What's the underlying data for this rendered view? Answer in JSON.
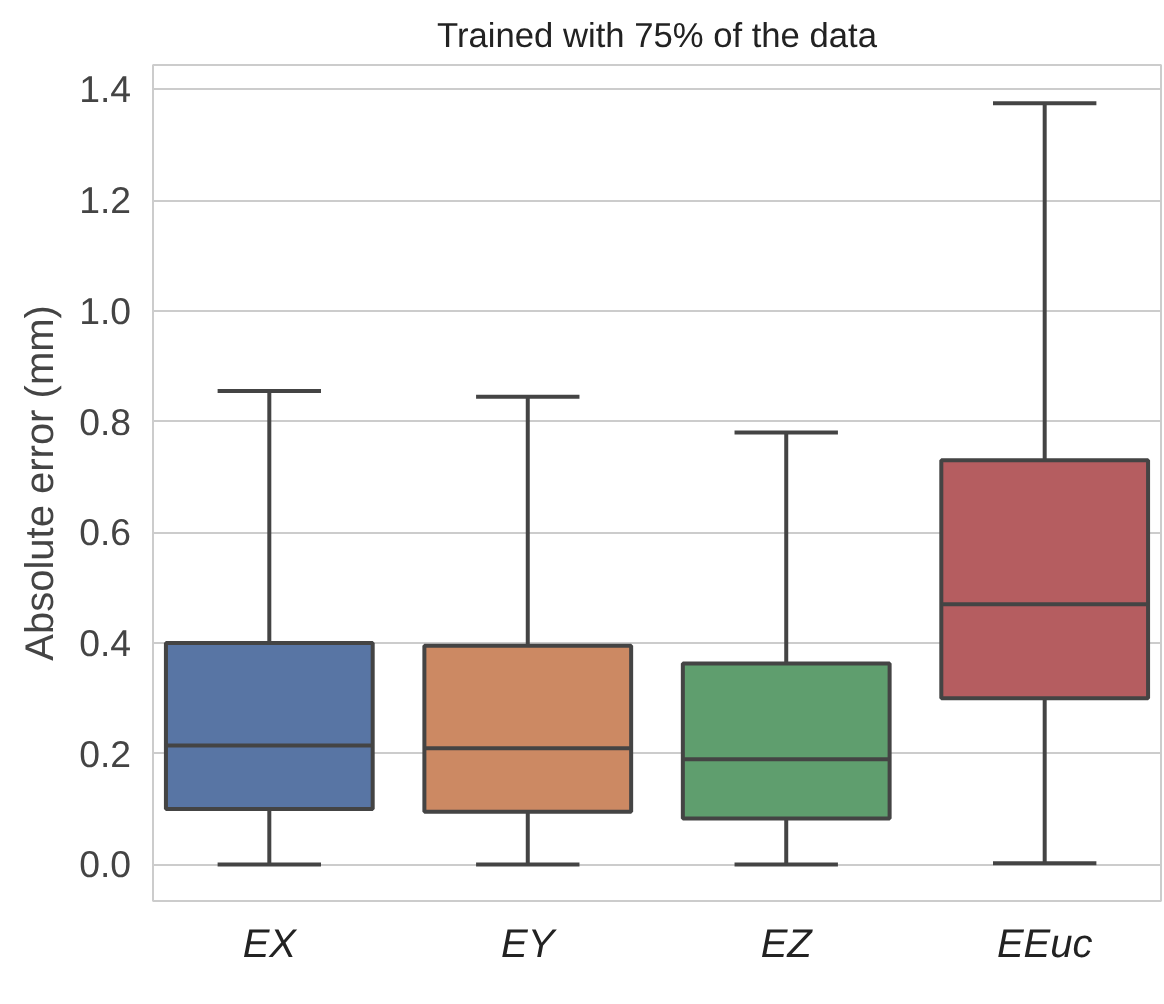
{
  "chart_data": {
    "type": "box",
    "title": "Trained with 75% of the data",
    "ylabel": "Absolute error (mm)",
    "categories": [
      "EX",
      "EY",
      "EZ",
      "EEuc"
    ],
    "colors": [
      "#5875a4",
      "#cc8963",
      "#5f9e6e",
      "#b55d60"
    ],
    "boxes": [
      {
        "low": 0.0,
        "q1": 0.1,
        "median": 0.215,
        "q3": 0.4,
        "high": 0.855
      },
      {
        "low": 0.0,
        "q1": 0.095,
        "median": 0.21,
        "q3": 0.395,
        "high": 0.845
      },
      {
        "low": 0.0,
        "q1": 0.083,
        "median": 0.19,
        "q3": 0.363,
        "high": 0.78
      },
      {
        "low": 0.002,
        "q1": 0.3,
        "median": 0.47,
        "q3": 0.73,
        "high": 1.375
      }
    ],
    "ylim": [
      -0.066,
      1.444
    ],
    "yticks": [
      {
        "value": 0,
        "label": "0.0"
      },
      0.2,
      0.4,
      0.6,
      0.8,
      {
        "value": 1,
        "label": "1.0"
      },
      1.2,
      1.4
    ],
    "grid": "y"
  }
}
